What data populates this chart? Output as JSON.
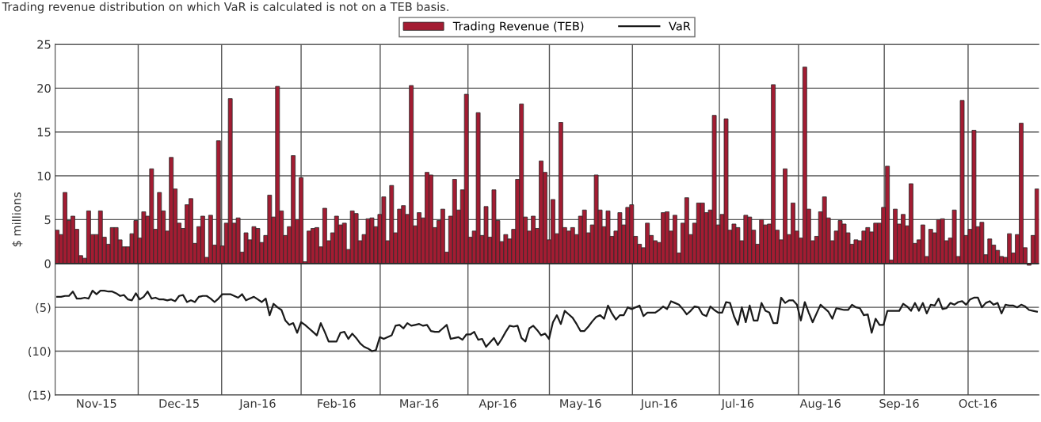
{
  "chart_data": {
    "type": "bar",
    "annotations": [
      "Trading revenue distribution on which VaR is calculated is not on a TEB basis."
    ],
    "ylabel": "$ millions",
    "ylim": [
      -15,
      25
    ],
    "yticks": [
      {
        "value": -15,
        "label": "(15)"
      },
      {
        "value": -10,
        "label": "(10)"
      },
      {
        "value": -5,
        "label": "(5)"
      },
      0,
      5,
      10,
      15,
      20,
      25
    ],
    "categories": [
      null,
      null,
      null,
      null,
      null,
      null,
      null,
      null,
      null,
      null,
      "Nov-15",
      null,
      null,
      null,
      null,
      null,
      null,
      null,
      null,
      null,
      null,
      null,
      null,
      null,
      null,
      null,
      null,
      null,
      null,
      null,
      null,
      "Dec-15",
      null,
      null,
      null,
      null,
      null,
      null,
      null,
      null,
      null,
      null,
      null,
      null,
      null,
      null,
      null,
      null,
      null,
      null,
      null,
      "Jan-16",
      null,
      null,
      null,
      null,
      null,
      null,
      null,
      null,
      null,
      null,
      null,
      null,
      null,
      null,
      null,
      null,
      null,
      null,
      null,
      "Feb-16",
      null,
      null,
      null,
      null,
      null,
      null,
      null,
      null,
      null,
      null,
      null,
      null,
      null,
      null,
      null,
      null,
      null,
      null,
      null,
      null,
      "Mar-16",
      null,
      null,
      null,
      null,
      null,
      null,
      null,
      null,
      null,
      null,
      null,
      null,
      null,
      null,
      null,
      null,
      null,
      null,
      null,
      "Apr-16",
      null,
      null,
      null,
      null,
      null,
      null,
      null,
      null,
      null,
      null,
      null,
      null,
      null,
      null,
      null,
      null,
      null,
      null,
      null,
      null,
      "May-16",
      null,
      null,
      null,
      null,
      null,
      null,
      null,
      null,
      null,
      null,
      null,
      null,
      null,
      null,
      null,
      null,
      null,
      null,
      null,
      "Jun-16",
      null,
      null,
      null,
      null,
      null,
      null,
      null,
      null,
      null,
      null,
      null,
      null,
      null,
      null,
      null,
      null,
      null,
      null,
      null,
      "Jul-16",
      null,
      null,
      null,
      null,
      null,
      null,
      null,
      null,
      null,
      null,
      null,
      null,
      null,
      null,
      null,
      null,
      null,
      null,
      null,
      null,
      "Aug-16",
      null,
      null,
      null,
      null,
      null,
      null,
      null,
      null,
      null,
      null,
      null,
      null,
      null,
      null,
      null,
      null,
      null,
      null,
      null,
      "Sep-16",
      null,
      null,
      null,
      null,
      null,
      null,
      null,
      null,
      null,
      null,
      null,
      null,
      null,
      null,
      null,
      null,
      null,
      null,
      null,
      "Oct-16",
      null,
      null,
      null,
      null,
      null,
      null,
      null,
      null,
      null,
      null,
      null,
      null,
      null,
      null,
      null
    ],
    "grid": "y",
    "legend": "top",
    "series": [
      {
        "name": "Trading Revenue (TEB)",
        "color": "#a31c32",
        "values": [
          3.8,
          3.3,
          8.1,
          4.9,
          5.4,
          3.9,
          0.9,
          0.6,
          6.0,
          3.3,
          3.3,
          6.0,
          3.0,
          2.2,
          4.1,
          4.1,
          2.7,
          1.9,
          1.9,
          3.4,
          4.9,
          2.9,
          5.9,
          5.4,
          10.8,
          3.9,
          8.1,
          6.0,
          3.7,
          12.1,
          8.5,
          4.6,
          4.0,
          6.7,
          7.4,
          2.3,
          4.2,
          5.4,
          0.7,
          5.5,
          2.1,
          14.0,
          2.0,
          4.6,
          18.8,
          4.6,
          5.2,
          1.3,
          3.5,
          2.7,
          4.2,
          4.0,
          2.4,
          3.2,
          7.8,
          5.3,
          20.2,
          6.0,
          3.2,
          4.2,
          12.3,
          5.0,
          9.8,
          0.2,
          3.7,
          4.0,
          4.1,
          1.9,
          6.3,
          2.6,
          3.5,
          5.4,
          4.4,
          4.6,
          1.6,
          6.0,
          5.7,
          2.6,
          3.3,
          5.1,
          5.2,
          4.2,
          5.6,
          7.6,
          2.6,
          8.9,
          3.5,
          6.2,
          6.6,
          5.6,
          20.3,
          4.3,
          5.8,
          5.2,
          10.4,
          10.1,
          4.1,
          4.9,
          6.2,
          1.3,
          5.4,
          9.6,
          6.1,
          8.4,
          19.3,
          3.0,
          3.7,
          17.2,
          3.2,
          6.5,
          3.0,
          8.4,
          4.9,
          2.5,
          3.3,
          2.8,
          3.9,
          9.6,
          18.2,
          5.3,
          3.7,
          5.4,
          4.0,
          11.7,
          10.4,
          2.7,
          7.3,
          3.4,
          16.1,
          4.1,
          3.7,
          4.1,
          3.3,
          5.4,
          6.1,
          3.5,
          4.4,
          10.1,
          6.1,
          4.2,
          6.0,
          3.1,
          3.7,
          5.8,
          4.4,
          6.4,
          6.7,
          3.1,
          2.2,
          1.8,
          4.6,
          3.2,
          2.6,
          2.4,
          5.8,
          5.9,
          3.7,
          5.5,
          1.2,
          4.6,
          7.5,
          3.3,
          4.6,
          6.9,
          6.9,
          5.8,
          6.1,
          16.9,
          4.4,
          5.6,
          16.5,
          3.8,
          4.5,
          4.1,
          2.6,
          5.5,
          5.3,
          3.8,
          2.2,
          5.0,
          4.4,
          4.5,
          20.4,
          3.8,
          2.7,
          10.8,
          3.3,
          6.9,
          3.7,
          2.9,
          22.4,
          6.2,
          2.6,
          3.1,
          5.9,
          7.6,
          5.2,
          2.6,
          3.7,
          4.9,
          4.5,
          3.5,
          2.2,
          2.7,
          2.6,
          3.7,
          4.1,
          3.6,
          4.6,
          4.6,
          6.4,
          11.1,
          0.4,
          6.2,
          4.5,
          5.6,
          4.3,
          9.1,
          2.3,
          2.7,
          4.4,
          0.8,
          3.9,
          3.5,
          5.0,
          5.1,
          2.6,
          2.9,
          6.1,
          0.8,
          18.6,
          3.2,
          3.9,
          15.2,
          4.2,
          4.7,
          1.0,
          2.8,
          2.1,
          1.5,
          0.8,
          0.7,
          3.4,
          1.2,
          3.3,
          16.0,
          1.8,
          -0.2,
          3.2,
          8.5
        ]
      },
      {
        "name": "VaR",
        "type": "line",
        "color": "#1a1a1a",
        "line_style": "solid",
        "marker": "none",
        "values": [
          -3.8,
          -3.8,
          -3.7,
          -3.7,
          -3.2,
          -4.0,
          -4.0,
          -3.9,
          -4.0,
          -3.1,
          -3.5,
          -3.1,
          -3.1,
          -3.2,
          -3.2,
          -3.4,
          -3.7,
          -3.6,
          -4.1,
          -4.2,
          -3.4,
          -4.1,
          -3.8,
          -3.2,
          -4.0,
          -3.9,
          -4.1,
          -4.1,
          -4.2,
          -4.1,
          -4.3,
          -3.7,
          -3.6,
          -4.4,
          -4.2,
          -4.4,
          -3.8,
          -3.7,
          -3.7,
          -4.0,
          -4.4,
          -4.0,
          -3.5,
          -3.5,
          -3.5,
          -3.7,
          -3.9,
          -3.5,
          -4.2,
          -4.0,
          -3.8,
          -4.1,
          -4.4,
          -4.0,
          -5.9,
          -4.6,
          -5.0,
          -5.3,
          -6.5,
          -7.0,
          -6.8,
          -7.9,
          -6.7,
          -7.0,
          -7.4,
          -7.8,
          -8.2,
          -6.8,
          -7.8,
          -8.9,
          -8.9,
          -8.9,
          -7.9,
          -7.8,
          -8.6,
          -8.0,
          -8.5,
          -9.1,
          -9.5,
          -9.7,
          -10.0,
          -9.9,
          -8.4,
          -8.6,
          -8.4,
          -8.2,
          -7.1,
          -7.0,
          -7.4,
          -6.8,
          -7.1,
          -7.0,
          -6.9,
          -7.1,
          -7.0,
          -7.7,
          -7.8,
          -7.8,
          -7.4,
          -7.0,
          -8.6,
          -8.5,
          -8.4,
          -8.7,
          -8.1,
          -8.1,
          -7.8,
          -8.7,
          -8.6,
          -9.5,
          -9.0,
          -8.5,
          -9.3,
          -8.6,
          -7.8,
          -7.1,
          -7.2,
          -7.1,
          -8.5,
          -8.9,
          -7.4,
          -7.1,
          -7.6,
          -8.2,
          -8.0,
          -8.6,
          -6.7,
          -5.9,
          -6.9,
          -5.4,
          -5.8,
          -6.2,
          -6.9,
          -7.7,
          -7.7,
          -7.2,
          -6.6,
          -6.1,
          -5.9,
          -6.3,
          -4.8,
          -5.7,
          -6.4,
          -5.9,
          -5.9,
          -5.0,
          -5.2,
          -5.0,
          -4.8,
          -6.0,
          -5.6,
          -5.6,
          -5.6,
          -5.3,
          -4.9,
          -5.2,
          -4.3,
          -4.5,
          -4.7,
          -5.2,
          -5.8,
          -5.4,
          -4.9,
          -5.0,
          -5.8,
          -6.0,
          -4.9,
          -5.3,
          -5.6,
          -5.6,
          -4.4,
          -4.5,
          -6.0,
          -7.0,
          -5.0,
          -6.7,
          -4.8,
          -6.5,
          -6.5,
          -4.5,
          -5.4,
          -5.6,
          -6.8,
          -6.8,
          -3.9,
          -4.5,
          -4.2,
          -4.2,
          -4.7,
          -6.5,
          -4.4,
          -5.6,
          -6.7,
          -5.7,
          -4.7,
          -5.1,
          -5.5,
          -6.3,
          -5.1,
          -5.2,
          -5.3,
          -5.3,
          -4.7,
          -5.0,
          -5.1,
          -5.9,
          -5.8,
          -7.9,
          -6.3,
          -7.0,
          -7.0,
          -5.4,
          -5.4,
          -5.4,
          -5.4,
          -4.6,
          -4.9,
          -5.4,
          -4.5,
          -5.4,
          -4.5,
          -5.7,
          -4.7,
          -4.8,
          -4.0,
          -5.2,
          -5.1,
          -4.5,
          -4.7,
          -4.4,
          -4.3,
          -4.7,
          -4.1,
          -3.9,
          -3.9,
          -5.0,
          -4.5,
          -4.3,
          -4.7,
          -4.5,
          -5.7,
          -4.7,
          -4.8,
          -4.8,
          -5.0,
          -4.7,
          -4.9,
          -5.3,
          -5.4,
          -5.5
        ]
      }
    ]
  }
}
